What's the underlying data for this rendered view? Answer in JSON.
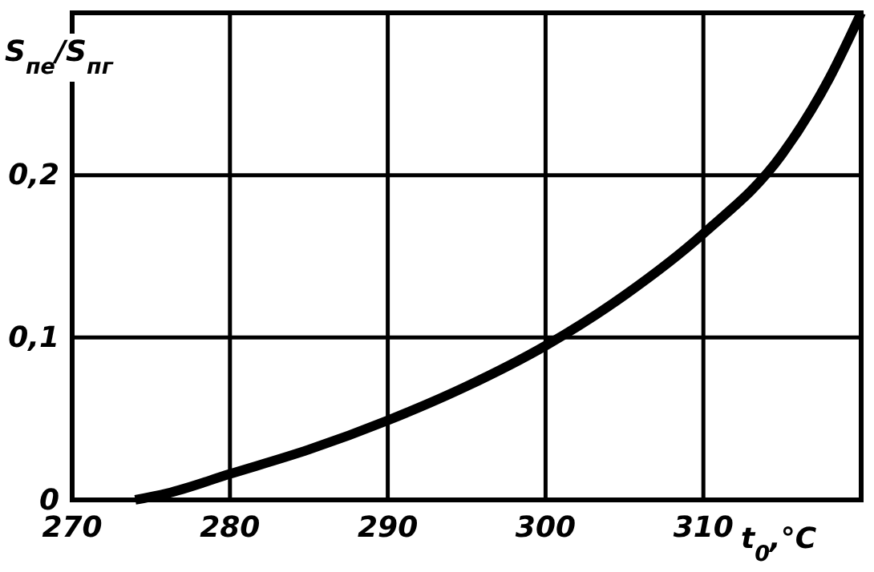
{
  "chart_data": {
    "type": "line",
    "xlabel": "t$_{0}$,°C",
    "ylabel": "S$_{пе}$/S$_{пг}$",
    "x": [
      274,
      276,
      280,
      285,
      290,
      295,
      300,
      305,
      310,
      315,
      318,
      320
    ],
    "values": [
      0,
      0.004,
      0.016,
      0.031,
      0.049,
      0.07,
      0.095,
      0.126,
      0.164,
      0.213,
      0.26,
      0.3
    ],
    "color": "#000000",
    "xlim": [
      270,
      320
    ],
    "ylim": [
      0,
      0.3
    ],
    "xticks": [
      270,
      280,
      290,
      300,
      310,
      {
        "value": 320,
        "label": null
      }
    ],
    "yticks": [
      {
        "value": 0,
        "label": "0"
      },
      {
        "value": 0.1,
        "label": "0,1"
      },
      {
        "value": 0.2,
        "label": "0,2"
      },
      {
        "value": 0.3,
        "label": null
      }
    ],
    "grid": true,
    "marker": "none",
    "line_style": "solid"
  }
}
